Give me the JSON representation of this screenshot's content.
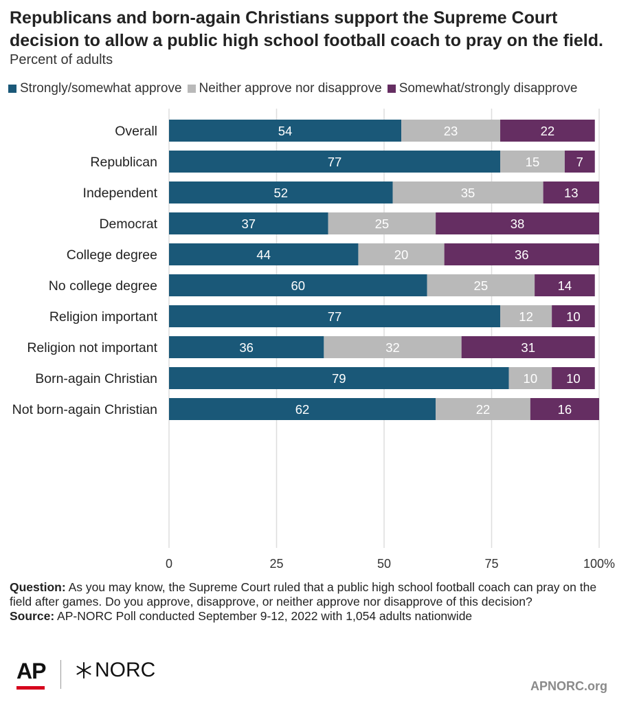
{
  "title": "Republicans and born-again Christians support the Supreme Court decision to allow a public high school football coach to pray on the field.",
  "subtitle": "Percent of adults",
  "legend": [
    {
      "label": "Strongly/somewhat approve",
      "color": "#1a5878"
    },
    {
      "label": "Neither approve nor disapprove",
      "color": "#b9b9b9"
    },
    {
      "label": "Somewhat/strongly disapprove",
      "color": "#652e62"
    }
  ],
  "chart_data": {
    "type": "bar",
    "orientation": "horizontal",
    "stacked": true,
    "categories": [
      "Overall",
      "Republican",
      "Independent ",
      "Democrat",
      "College degree",
      "No college degree",
      "Religion important",
      "Religion not important",
      "Born-again Christian",
      "Not born-again Christian"
    ],
    "groups": [
      [
        0
      ],
      [
        1,
        2,
        3
      ],
      [
        4,
        5
      ],
      [
        6,
        7
      ],
      [
        8,
        9
      ]
    ],
    "series": [
      {
        "name": "Strongly/somewhat approve",
        "color": "#1a5878",
        "values": [
          54,
          77,
          52,
          37,
          44,
          60,
          77,
          36,
          79,
          62
        ]
      },
      {
        "name": "Neither approve nor disapprove",
        "color": "#b9b9b9",
        "values": [
          23,
          15,
          35,
          25,
          20,
          25,
          12,
          32,
          10,
          22
        ]
      },
      {
        "name": "Somewhat/strongly disapprove",
        "color": "#652e62",
        "values": [
          22,
          7,
          13,
          38,
          36,
          14,
          10,
          31,
          10,
          16
        ]
      }
    ],
    "xlim": [
      0,
      100
    ],
    "xticks": [
      0,
      25,
      50,
      75,
      100
    ],
    "xtick_labels": [
      "0",
      "25",
      "50",
      "75",
      "100%"
    ],
    "grid": true,
    "legend_position": "top-left"
  },
  "notes": {
    "question_label": "Question:",
    "question_text": " As you may know, the Supreme Court ruled that a public high school football coach can pray on the field after games. Do you approve, disapprove, or neither approve nor disapprove of this decision?",
    "source_label": "Source:",
    "source_text": " AP-NORC Poll conducted September 9-12, 2022 with 1,054 adults nationwide"
  },
  "branding": {
    "ap_logo": "AP",
    "norc_logo": "NORC",
    "norc_icon": "star-burst-icon",
    "site": "APNORC.org"
  }
}
